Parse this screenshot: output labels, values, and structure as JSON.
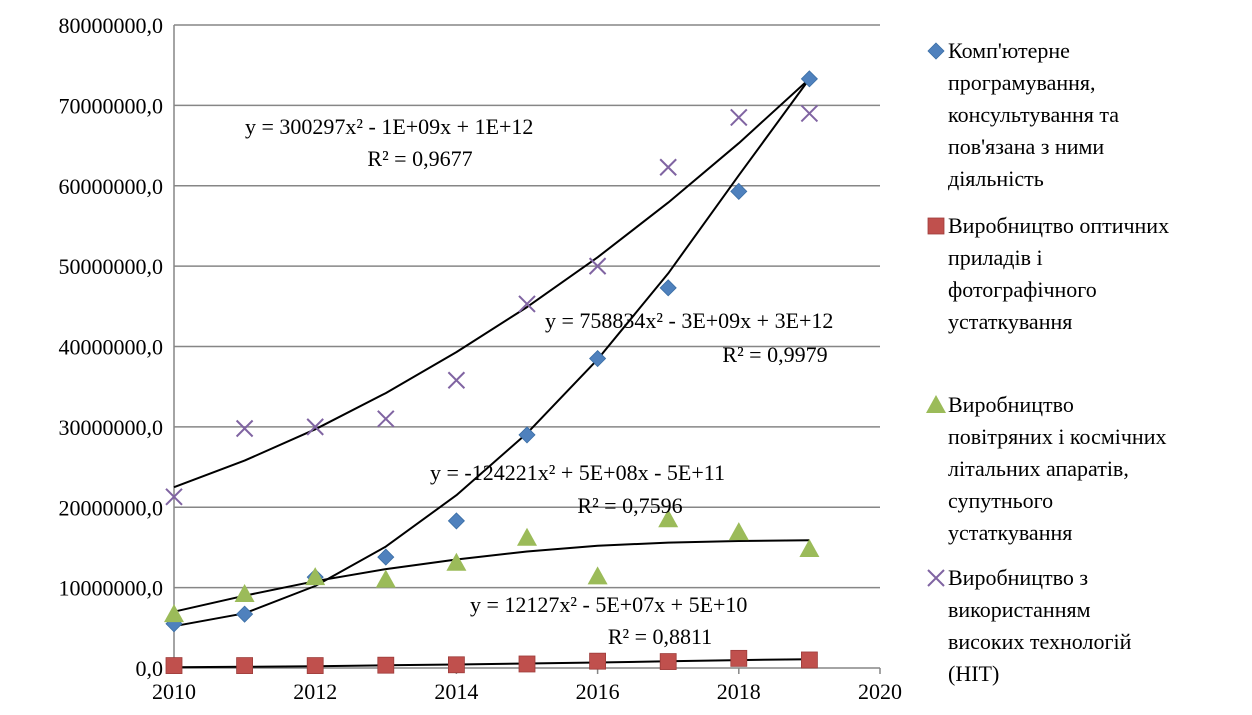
{
  "chart_data": {
    "type": "scatter",
    "xlim": [
      2010,
      2020
    ],
    "ylim": [
      0,
      80000000
    ],
    "x_ticks": [
      2010,
      2012,
      2014,
      2016,
      2018,
      2020
    ],
    "y_ticks": [
      {
        "value": 0,
        "label": "0,0"
      },
      {
        "value": 10000000,
        "label": "10000000,0"
      },
      {
        "value": 20000000,
        "label": "20000000,0"
      },
      {
        "value": 30000000,
        "label": "30000000,0"
      },
      {
        "value": 40000000,
        "label": "40000000,0"
      },
      {
        "value": 50000000,
        "label": "50000000,0"
      },
      {
        "value": 60000000,
        "label": "60000000,0"
      },
      {
        "value": 70000000,
        "label": "70000000,0"
      },
      {
        "value": 80000000,
        "label": "80000000,0"
      }
    ],
    "grid": "horizontal",
    "legend_position": "right",
    "x": [
      2010,
      2011,
      2012,
      2013,
      2014,
      2015,
      2016,
      2017,
      2018,
      2019
    ],
    "series": [
      {
        "name": "Комп'ютерне програмування, консультування та пов'язана з ними діяльність",
        "legend_lines": [
          "Комп'ютерне",
          "програмування,",
          "консультування та",
          "пов'язана з ними",
          "діяльність"
        ],
        "marker": "diamond",
        "color": "#4F81BD",
        "values": [
          5500000,
          6700000,
          11300000,
          13800000,
          18300000,
          29000000,
          38500000,
          47300000,
          59300000,
          73300000
        ],
        "trend": {
          "equation": "y = 758834x² - 3E+09x + 3E+12",
          "r2": "R² = 0,9979",
          "fit": [
            5200000,
            6800000,
            10200000,
            15100000,
            21500000,
            29200000,
            38400000,
            49100000,
            61300000,
            73300000
          ]
        }
      },
      {
        "name": "Виробництво оптичних приладів і фотографічного устаткування",
        "legend_lines": [
          "Виробництво оптичних",
          "приладів і",
          "фотографічного",
          "устаткування"
        ],
        "marker": "square",
        "color": "#C0504D",
        "values": [
          300000,
          300000,
          300000,
          350000,
          400000,
          500000,
          850000,
          800000,
          1200000,
          1000000
        ],
        "trend": {
          "equation": "y = 12127x² - 5E+07x + 5E+10",
          "r2": "R² = 0,8811",
          "fit": [
            100000,
            150000,
            230000,
            330000,
            440000,
            560000,
            690000,
            830000,
            980000,
            1100000
          ]
        }
      },
      {
        "name": "Виробництво повітряних і космічних літальних апаратів, супутнього устаткування",
        "legend_lines": [
          "Виробництво",
          "повітряних і космічних",
          "літальних апаратів,",
          "супутнього",
          "устаткування"
        ],
        "marker": "triangle",
        "color": "#9BBB59",
        "values": [
          6700000,
          9200000,
          11300000,
          11000000,
          13100000,
          16200000,
          11400000,
          18500000,
          16900000,
          14800000
        ],
        "trend": {
          "equation": "y = -124221x² + 5E+08x - 5E+11",
          "r2": "R² = 0,7596",
          "fit": [
            7000000,
            9000000,
            10800000,
            12300000,
            13500000,
            14500000,
            15200000,
            15600000,
            15800000,
            15900000
          ]
        }
      },
      {
        "name": "Виробництво з використанням високих технологій (НІТ)",
        "legend_lines": [
          "Виробництво з",
          "використанням",
          "високих технологій",
          "(НІТ)"
        ],
        "marker": "x",
        "color": "#8064A2",
        "values": [
          21300000,
          29800000,
          30000000,
          31000000,
          35800000,
          45300000,
          50000000,
          62300000,
          68500000,
          69000000
        ],
        "trend": {
          "equation": "y = 300297x² - 1E+09x + 1E+12",
          "r2": "R² = 0,9677",
          "fit": [
            22500000,
            25800000,
            29700000,
            34200000,
            39300000,
            44900000,
            51100000,
            57900000,
            65300000,
            73300000
          ]
        }
      }
    ]
  }
}
